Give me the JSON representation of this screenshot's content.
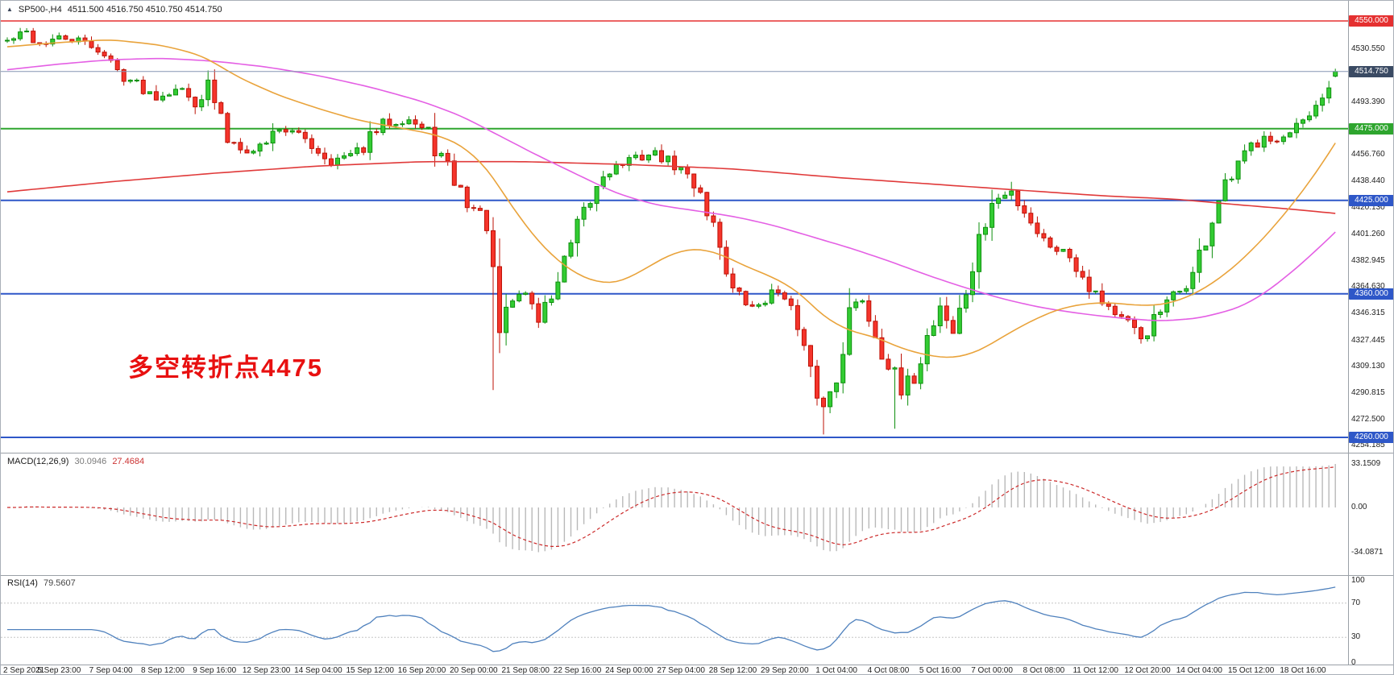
{
  "window": {
    "symbol": "SP500-,H4",
    "ohlc": "4511.500 4516.750 4510.750 4514.750"
  },
  "chart_data": {
    "type": "candlestick",
    "symbol": "SP500-",
    "timeframe": "H4",
    "bars": 206,
    "bars_per_time_label": 8,
    "last_ohlc": {
      "open": 4511.5,
      "high": 4516.75,
      "low": 4510.75,
      "close": 4514.75
    },
    "current_price": {
      "value": 4514.75,
      "label": "4514.750"
    },
    "annotation": {
      "text": "多空转折点4475",
      "color": "#E81010"
    },
    "colors": {
      "up": "#33CC33",
      "up_border": "#0E8F0E",
      "down": "#F5342B",
      "down_border": "#BD1206",
      "current_badge": "#3A4A63"
    },
    "hlines": [
      {
        "price": 4550.0,
        "label": "4550.000",
        "color": "#E53030",
        "width": 1.5
      },
      {
        "price": 4475.0,
        "label": "4475.000",
        "color": "#2EA52E",
        "width": 2
      },
      {
        "price": 4425.0,
        "label": "4425.000",
        "color": "#2E57C8",
        "width": 2
      },
      {
        "price": 4360.0,
        "label": "4360.000",
        "color": "#2E57C8",
        "width": 2
      },
      {
        "price": 4260.0,
        "label": "4260.000",
        "color": "#2E57C8",
        "width": 2
      }
    ],
    "y_axis_ticks": [
      "4530.550",
      "4493.390",
      "4456.760",
      "4438.440",
      "4420.130",
      "4401.260",
      "4382.945",
      "4364.630",
      "4346.315",
      "4327.445",
      "4309.130",
      "4290.815",
      "4272.500",
      "4254.185"
    ],
    "time_labels": [
      "2 Sep 2021",
      "5 Sep 23:00",
      "7 Sep 04:00",
      "8 Sep 12:00",
      "9 Sep 16:00",
      "12 Sep 23:00",
      "14 Sep 04:00",
      "15 Sep 12:00",
      "16 Sep 20:00",
      "20 Sep 00:00",
      "21 Sep 08:00",
      "22 Sep 16:00",
      "24 Sep 00:00",
      "27 Sep 04:00",
      "28 Sep 12:00",
      "29 Sep 20:00",
      "1 Oct 04:00",
      "4 Oct 08:00",
      "5 Oct 16:00",
      "7 Oct 00:00",
      "8 Oct 08:00",
      "11 Oct 12:00",
      "12 Oct 20:00",
      "14 Oct 04:00",
      "15 Oct 12:00",
      "18 Oct 16:00"
    ],
    "price_anchors": [
      [
        0,
        4536
      ],
      [
        3,
        4542
      ],
      [
        5,
        4534
      ],
      [
        8,
        4538
      ],
      [
        11,
        4536
      ],
      [
        14,
        4531
      ],
      [
        17,
        4515
      ],
      [
        20,
        4506
      ],
      [
        23,
        4497
      ],
      [
        26,
        4504
      ],
      [
        29,
        4493
      ],
      [
        31,
        4506
      ],
      [
        34,
        4468
      ],
      [
        38,
        4459
      ],
      [
        42,
        4476
      ],
      [
        46,
        4468
      ],
      [
        50,
        4452
      ],
      [
        54,
        4458
      ],
      [
        58,
        4478
      ],
      [
        62,
        4482
      ],
      [
        65,
        4471
      ],
      [
        68,
        4446
      ],
      [
        71,
        4424
      ],
      [
        74,
        4410
      ],
      [
        76,
        4332
      ],
      [
        78,
        4356
      ],
      [
        80,
        4362
      ],
      [
        82,
        4341
      ],
      [
        85,
        4369
      ],
      [
        88,
        4404
      ],
      [
        92,
        4444
      ],
      [
        96,
        4453
      ],
      [
        100,
        4458
      ],
      [
        104,
        4446
      ],
      [
        107,
        4432
      ],
      [
        110,
        4395
      ],
      [
        112,
        4362
      ],
      [
        115,
        4350
      ],
      [
        118,
        4360
      ],
      [
        120,
        4363
      ],
      [
        122,
        4333
      ],
      [
        124,
        4303
      ],
      [
        126,
        4281
      ],
      [
        128,
        4303
      ],
      [
        130,
        4347
      ],
      [
        132,
        4357
      ],
      [
        134,
        4332
      ],
      [
        136,
        4312
      ],
      [
        138,
        4289
      ],
      [
        140,
        4303
      ],
      [
        142,
        4330
      ],
      [
        144,
        4352
      ],
      [
        146,
        4333
      ],
      [
        148,
        4361
      ],
      [
        150,
        4395
      ],
      [
        152,
        4423
      ],
      [
        155,
        4431
      ],
      [
        158,
        4412
      ],
      [
        160,
        4397
      ],
      [
        164,
        4387
      ],
      [
        168,
        4361
      ],
      [
        172,
        4342
      ],
      [
        175,
        4329
      ],
      [
        178,
        4347
      ],
      [
        180,
        4357
      ],
      [
        183,
        4373
      ],
      [
        185,
        4398
      ],
      [
        187,
        4424
      ],
      [
        189,
        4440
      ],
      [
        192,
        4462
      ],
      [
        194,
        4472
      ],
      [
        196,
        4466
      ],
      [
        198,
        4470
      ],
      [
        200,
        4478
      ],
      [
        202,
        4487
      ],
      [
        204,
        4503
      ],
      [
        205,
        4514.75
      ]
    ],
    "special_wicks": [
      {
        "bar": 75,
        "low": 4293
      },
      {
        "bar": 126,
        "low": 4262
      },
      {
        "bar": 137,
        "low": 4266
      },
      {
        "bar": 31,
        "high": 4513
      },
      {
        "bar": 155,
        "high": 4438
      }
    ],
    "moving_averages": [
      {
        "name": "slow-red",
        "color": "#E03A3A",
        "anchors": [
          [
            0,
            4431
          ],
          [
            16,
            4438
          ],
          [
            32,
            4444
          ],
          [
            48,
            4449
          ],
          [
            64,
            4452
          ],
          [
            80,
            4452
          ],
          [
            96,
            4450
          ],
          [
            112,
            4447
          ],
          [
            128,
            4441
          ],
          [
            144,
            4436
          ],
          [
            160,
            4431
          ],
          [
            170,
            4428
          ],
          [
            180,
            4426
          ],
          [
            190,
            4422
          ],
          [
            198,
            4419
          ],
          [
            205,
            4416
          ]
        ]
      },
      {
        "name": "mid-magenta",
        "color": "#E45FE4",
        "anchors": [
          [
            0,
            4516
          ],
          [
            8,
            4520
          ],
          [
            16,
            4523
          ],
          [
            24,
            4524
          ],
          [
            32,
            4522
          ],
          [
            40,
            4518
          ],
          [
            48,
            4512
          ],
          [
            56,
            4504
          ],
          [
            64,
            4494
          ],
          [
            70,
            4484
          ],
          [
            76,
            4470
          ],
          [
            82,
            4456
          ],
          [
            88,
            4443
          ],
          [
            94,
            4430
          ],
          [
            100,
            4422
          ],
          [
            106,
            4418
          ],
          [
            112,
            4414
          ],
          [
            118,
            4408
          ],
          [
            124,
            4400
          ],
          [
            130,
            4392
          ],
          [
            136,
            4383
          ],
          [
            142,
            4373
          ],
          [
            148,
            4364
          ],
          [
            154,
            4356
          ],
          [
            160,
            4350
          ],
          [
            166,
            4346
          ],
          [
            172,
            4343
          ],
          [
            178,
            4341
          ],
          [
            184,
            4343
          ],
          [
            190,
            4350
          ],
          [
            194,
            4360
          ],
          [
            198,
            4374
          ],
          [
            202,
            4390
          ],
          [
            205,
            4403
          ]
        ]
      },
      {
        "name": "fast-orange",
        "color": "#E9A33B",
        "anchors": [
          [
            0,
            4532
          ],
          [
            8,
            4535
          ],
          [
            16,
            4537
          ],
          [
            24,
            4533
          ],
          [
            30,
            4526
          ],
          [
            36,
            4510
          ],
          [
            42,
            4498
          ],
          [
            48,
            4489
          ],
          [
            54,
            4481
          ],
          [
            60,
            4476
          ],
          [
            66,
            4471
          ],
          [
            70,
            4464
          ],
          [
            74,
            4448
          ],
          [
            78,
            4420
          ],
          [
            82,
            4396
          ],
          [
            86,
            4379
          ],
          [
            90,
            4369
          ],
          [
            94,
            4367
          ],
          [
            98,
            4376
          ],
          [
            102,
            4387
          ],
          [
            106,
            4392
          ],
          [
            110,
            4388
          ],
          [
            114,
            4379
          ],
          [
            118,
            4372
          ],
          [
            122,
            4362
          ],
          [
            126,
            4344
          ],
          [
            130,
            4334
          ],
          [
            134,
            4330
          ],
          [
            138,
            4322
          ],
          [
            142,
            4317
          ],
          [
            146,
            4315
          ],
          [
            150,
            4320
          ],
          [
            154,
            4331
          ],
          [
            158,
            4341
          ],
          [
            162,
            4349
          ],
          [
            166,
            4353
          ],
          [
            170,
            4354
          ],
          [
            174,
            4352
          ],
          [
            178,
            4352
          ],
          [
            182,
            4357
          ],
          [
            186,
            4367
          ],
          [
            190,
            4381
          ],
          [
            194,
            4399
          ],
          [
            198,
            4420
          ],
          [
            202,
            4444
          ],
          [
            205,
            4465
          ]
        ]
      }
    ],
    "indicators": {
      "macd": {
        "label": "MACD(12,26,9)",
        "value_main": "30.0946",
        "value_signal": "27.4684",
        "fast": 12,
        "slow": 26,
        "signal": 9,
        "axis_max": "33.1509",
        "axis_zero": "0.00",
        "axis_min": "-34.0871",
        "histogram_color": "#B9B9B9",
        "signal_color": "#CC2A2A"
      },
      "rsi": {
        "label": "RSI(14)",
        "value": "79.5607",
        "period": 14,
        "levels": [
          100,
          70,
          30,
          0
        ],
        "line_color": "#4F81BD"
      }
    }
  }
}
